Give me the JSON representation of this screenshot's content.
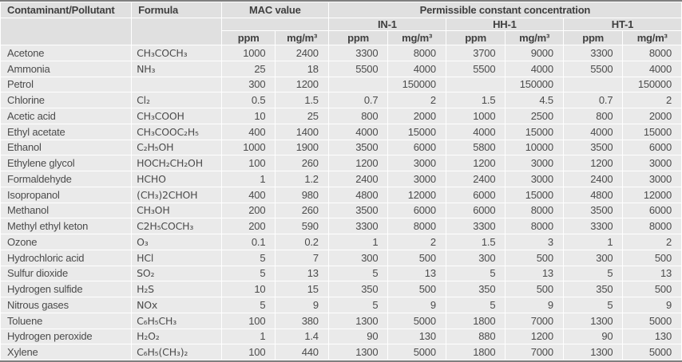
{
  "table": {
    "header": {
      "contaminant": "Contaminant/Pollutant",
      "formula": "Formula",
      "mac": "MAC value",
      "permissible": "Permissible constant concentration",
      "groups": [
        "IN-1",
        "HH-1",
        "HT-1"
      ],
      "unit_ppm": "ppm",
      "unit_mg": "mg/m³"
    },
    "colors": {
      "header_bg": "#e0e0e0",
      "cell_bg": "#eaeaea",
      "grid_line": "#ffffff",
      "outer_rule": "#7f7f7f",
      "text": "#4b4b4b"
    },
    "rows": [
      {
        "name": "Acetone",
        "formula": "CH₃COCH₃",
        "values": [
          "1000",
          "2400",
          "3300",
          "8000",
          "3700",
          "9000",
          "3300",
          "8000"
        ]
      },
      {
        "name": "Ammonia",
        "formula": "NH₃",
        "values": [
          "25",
          "18",
          "5500",
          "4000",
          "5500",
          "4000",
          "5500",
          "4000"
        ]
      },
      {
        "name": "Petrol",
        "formula": "",
        "values": [
          "300",
          "1200",
          "",
          "150000",
          "",
          "150000",
          "",
          "150000"
        ]
      },
      {
        "name": "Chlorine",
        "formula": "Cl₂",
        "values": [
          "0.5",
          "1.5",
          "0.7",
          "2",
          "1.5",
          "4.5",
          "0.7",
          "2"
        ]
      },
      {
        "name": "Acetic acid",
        "formula": "CH₃COOH",
        "values": [
          "10",
          "25",
          "800",
          "2000",
          "1000",
          "2500",
          "800",
          "2000"
        ]
      },
      {
        "name": "Ethyl acetate",
        "formula": "CH₃COOC₂H₅",
        "values": [
          "400",
          "1400",
          "4000",
          "15000",
          "4000",
          "15000",
          "4000",
          "15000"
        ]
      },
      {
        "name": "Ethanol",
        "formula": "C₂H₅OH",
        "values": [
          "1000",
          "1900",
          "3500",
          "6000",
          "5800",
          "10000",
          "3500",
          "6000"
        ]
      },
      {
        "name": "Ethylene glycol",
        "formula": "HOCH₂CH₂OH",
        "values": [
          "100",
          "260",
          "1200",
          "3000",
          "1200",
          "3000",
          "1200",
          "3000"
        ]
      },
      {
        "name": "Formaldehyde",
        "formula": "HCHO",
        "values": [
          "1",
          "1.2",
          "2400",
          "3000",
          "2400",
          "3000",
          "2400",
          "3000"
        ]
      },
      {
        "name": "Isopropanol",
        "formula": "(CH₃)2CHOH",
        "values": [
          "400",
          "980",
          "4800",
          "12000",
          "6000",
          "15000",
          "4800",
          "12000"
        ]
      },
      {
        "name": "Methanol",
        "formula": "CH₃OH",
        "values": [
          "200",
          "260",
          "3500",
          "6000",
          "6000",
          "8000",
          "3500",
          "6000"
        ]
      },
      {
        "name": "Methyl ethyl keton",
        "formula": "C2H₅COCH₃",
        "values": [
          "200",
          "590",
          "3300",
          "8000",
          "3300",
          "8000",
          "3300",
          "8000"
        ]
      },
      {
        "name": "Ozone",
        "formula": "O₃",
        "values": [
          "0.1",
          "0.2",
          "1",
          "2",
          "1.5",
          "3",
          "1",
          "2"
        ]
      },
      {
        "name": "Hydrochloric acid",
        "formula": "HCl",
        "values": [
          "5",
          "7",
          "300",
          "500",
          "300",
          "500",
          "300",
          "500"
        ]
      },
      {
        "name": "Sulfur dioxide",
        "formula": "SO₂",
        "values": [
          "5",
          "13",
          "5",
          "13",
          "5",
          "13",
          "5",
          "13"
        ]
      },
      {
        "name": "Hydrogen sulfide",
        "formula": "H₂S",
        "values": [
          "10",
          "15",
          "350",
          "500",
          "350",
          "500",
          "350",
          "500"
        ]
      },
      {
        "name": "Nitrous gases",
        "formula": "NOx",
        "values": [
          "5",
          "9",
          "5",
          "9",
          "5",
          "9",
          "5",
          "9"
        ]
      },
      {
        "name": "Toluene",
        "formula": "C₆H₅CH₃",
        "values": [
          "100",
          "380",
          "1300",
          "5000",
          "1800",
          "7000",
          "1300",
          "5000"
        ]
      },
      {
        "name": "Hydrogen peroxide",
        "formula": "H₂O₂",
        "values": [
          "1",
          "1.4",
          "90",
          "130",
          "880",
          "1200",
          "90",
          "130"
        ]
      },
      {
        "name": "Xylene",
        "formula": "C₆H₅(CH₃)₂",
        "values": [
          "100",
          "440",
          "1300",
          "5000",
          "1800",
          "7000",
          "1300",
          "5000"
        ]
      }
    ]
  }
}
